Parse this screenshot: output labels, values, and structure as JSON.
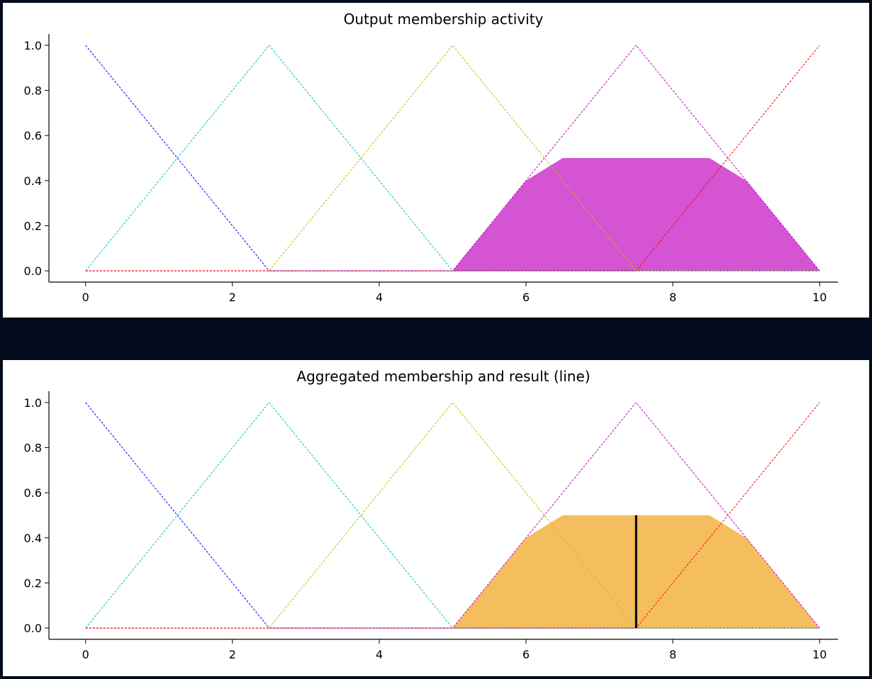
{
  "chart_data": [
    {
      "type": "line",
      "title": "Output membership activity",
      "xlim": [
        -0.5,
        10.25
      ],
      "ylim": [
        -0.05,
        1.05
      ],
      "xticks": [
        0,
        2,
        4,
        6,
        8,
        10
      ],
      "yticks": [
        0.0,
        0.2,
        0.4,
        0.6,
        0.8,
        1.0
      ],
      "grid": false,
      "series": [
        {
          "color": "#0000ff",
          "style": "dashed",
          "x": [
            0,
            2.5,
            10
          ],
          "y": [
            1,
            0,
            0
          ]
        },
        {
          "color": "#00bfbf",
          "style": "dashed",
          "x": [
            0,
            2.5,
            5,
            10
          ],
          "y": [
            0,
            1,
            0,
            0
          ]
        },
        {
          "color": "#bfbf00",
          "style": "dashed",
          "x": [
            0,
            2.5,
            5,
            7.5,
            10
          ],
          "y": [
            0,
            0,
            1,
            0,
            0
          ]
        },
        {
          "color": "#bf00bf",
          "style": "dashed",
          "x": [
            0,
            5,
            7.5,
            10
          ],
          "y": [
            0,
            0,
            1,
            0
          ]
        },
        {
          "color": "#ff0000",
          "style": "dashed",
          "x": [
            0,
            7.5,
            10
          ],
          "y": [
            0,
            0,
            1
          ]
        }
      ],
      "filled_area": {
        "color": "#bf00bf",
        "opacity": 0.67,
        "x": [
          5,
          6,
          6.5,
          8.5,
          9,
          10
        ],
        "y": [
          0,
          0.4,
          0.5,
          0.5,
          0.4,
          0
        ]
      },
      "result_line": null
    },
    {
      "type": "line",
      "title": "Aggregated membership and result (line)",
      "xlim": [
        -0.5,
        10.25
      ],
      "ylim": [
        -0.05,
        1.05
      ],
      "xticks": [
        0,
        2,
        4,
        6,
        8,
        10
      ],
      "yticks": [
        0.0,
        0.2,
        0.4,
        0.6,
        0.8,
        1.0
      ],
      "grid": false,
      "series": [
        {
          "color": "#0000ff",
          "style": "dashed",
          "x": [
            0,
            2.5,
            10
          ],
          "y": [
            1,
            0,
            0
          ]
        },
        {
          "color": "#00bfbf",
          "style": "dashed",
          "x": [
            0,
            2.5,
            5,
            10
          ],
          "y": [
            0,
            1,
            0,
            0
          ]
        },
        {
          "color": "#bfbf00",
          "style": "dashed",
          "x": [
            0,
            2.5,
            5,
            7.5,
            10
          ],
          "y": [
            0,
            0,
            1,
            0,
            0
          ]
        },
        {
          "color": "#bf00bf",
          "style": "dashed",
          "x": [
            0,
            5,
            7.5,
            10
          ],
          "y": [
            0,
            0,
            1,
            0
          ]
        },
        {
          "color": "#ff0000",
          "style": "dashed",
          "x": [
            0,
            7.5,
            10
          ],
          "y": [
            0,
            0,
            1
          ]
        }
      ],
      "filled_area": {
        "color": "#f0a82a",
        "opacity": 0.75,
        "x": [
          5,
          6,
          6.5,
          8.5,
          9,
          10
        ],
        "y": [
          0,
          0.4,
          0.5,
          0.5,
          0.4,
          0
        ]
      },
      "result_line": {
        "color": "#000000",
        "x": 7.5,
        "y": [
          0,
          0.5
        ]
      }
    }
  ]
}
